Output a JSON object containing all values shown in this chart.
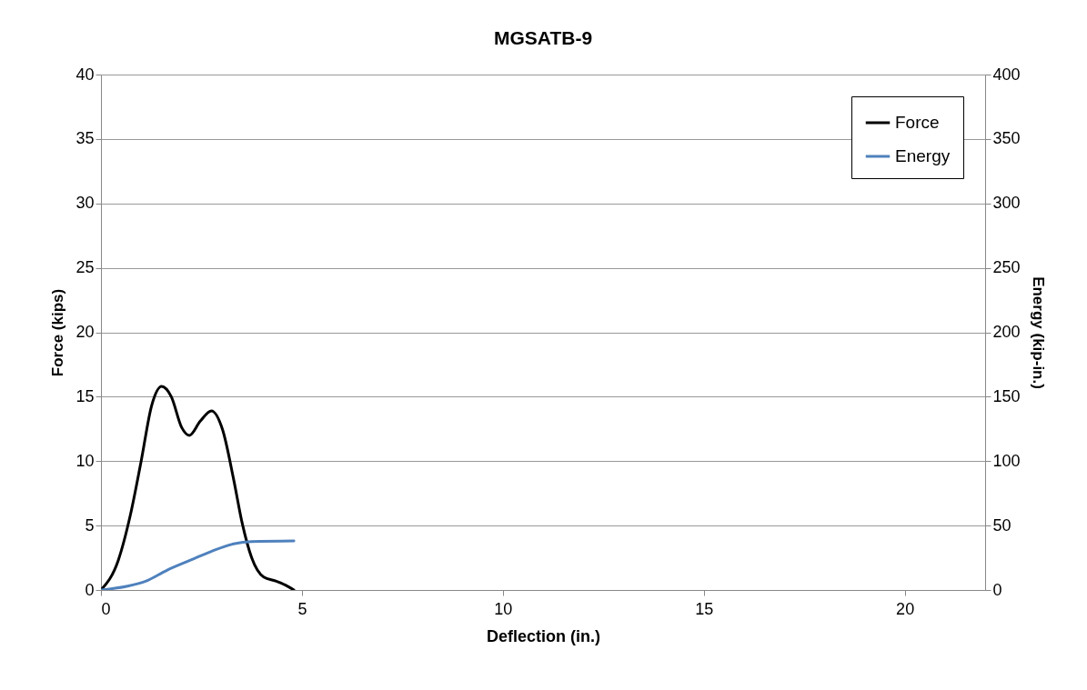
{
  "chart_data": {
    "type": "line",
    "title": "MGSATB-9",
    "xlabel": "Deflection (in.)",
    "ylabel": "Force (kips)",
    "y2label": "Energy (kip-in.)",
    "xlim": [
      0,
      22
    ],
    "xticks": [
      0,
      5,
      10,
      15,
      20
    ],
    "ylim": [
      0,
      40
    ],
    "yticks": [
      0,
      5,
      10,
      15,
      20,
      25,
      30,
      35,
      40
    ],
    "y2lim": [
      0,
      400
    ],
    "y2ticks": [
      0,
      50,
      100,
      150,
      200,
      250,
      300,
      350,
      400
    ],
    "grid": "y",
    "legend": "top right",
    "marker": "none",
    "line_style": "solid",
    "series": [
      {
        "name": "Force",
        "color": "#000000",
        "x": [
          0,
          0.43,
          0.73,
          1.0,
          1.26,
          1.51,
          1.75,
          2.01,
          2.2,
          2.47,
          2.75,
          3.03,
          3.3,
          3.52,
          3.75,
          4.05,
          4.35,
          4.58,
          4.8
        ],
        "values": [
          0,
          2.3,
          5.8,
          10.0,
          14.3,
          15.8,
          15.0,
          12.6,
          12.0,
          13.1,
          13.9,
          12.4,
          8.6,
          5.1,
          2.5,
          1.0,
          0.7,
          0.4,
          0
        ]
      },
      {
        "name": "Energy",
        "color": "#4f81bd",
        "axis": "y2",
        "x": [
          0,
          0.66,
          1.11,
          1.64,
          2.24,
          2.77,
          3.3,
          3.75,
          4.8
        ],
        "values": [
          0,
          3,
          6.8,
          15.3,
          23.3,
          30.3,
          35.8,
          37.6,
          38.1
        ]
      }
    ]
  }
}
